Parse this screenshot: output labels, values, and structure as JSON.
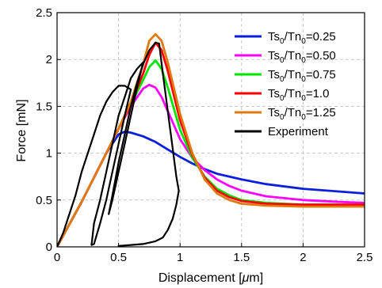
{
  "chart_data": {
    "type": "line",
    "xlabel_prefix": "Displacement [",
    "xlabel_unit": "μ",
    "xlabel_suffix": "m]",
    "ylabel": "Force [mN]",
    "xlim": [
      0,
      2.5
    ],
    "ylim": [
      0,
      2.5
    ],
    "xticks": [
      {
        "value": 0,
        "label": "0"
      },
      {
        "value": 0.5,
        "label": "0.5"
      },
      {
        "value": 1,
        "label": "1"
      },
      {
        "value": 1.5,
        "label": "1.5"
      },
      {
        "value": 2,
        "label": "2"
      },
      {
        "value": 2.5,
        "label": "2.5"
      }
    ],
    "yticks": [
      {
        "value": 0,
        "label": "0"
      },
      {
        "value": 0.5,
        "label": "0.5"
      },
      {
        "value": 1,
        "label": "1"
      },
      {
        "value": 1.5,
        "label": "1.5"
      },
      {
        "value": 2,
        "label": "2"
      },
      {
        "value": 2.5,
        "label": "2.5"
      }
    ],
    "grid": true,
    "legend_position": "top-right",
    "series": [
      {
        "legend": {
          "a": "Ts",
          "a_sub": "0",
          "b": "/Tn",
          "b_sub": "0",
          "c": "=0.25"
        },
        "color": "#0a1edc",
        "x": [
          0,
          0.1,
          0.2,
          0.3,
          0.4,
          0.5,
          0.55,
          0.6,
          0.7,
          0.8,
          0.9,
          1.0,
          1.1,
          1.2,
          1.3,
          1.5,
          1.7,
          2.0,
          2.3,
          2.5
        ],
        "y": [
          0,
          0.24,
          0.48,
          0.74,
          1.0,
          1.2,
          1.23,
          1.22,
          1.18,
          1.12,
          1.04,
          0.96,
          0.89,
          0.83,
          0.78,
          0.72,
          0.67,
          0.62,
          0.59,
          0.57
        ]
      },
      {
        "legend": {
          "a": "Ts",
          "a_sub": "0",
          "b": "/Tn",
          "b_sub": "0",
          "c": "=0.50"
        },
        "color": "#ff00ff",
        "x": [
          0,
          0.1,
          0.2,
          0.3,
          0.4,
          0.5,
          0.6,
          0.7,
          0.75,
          0.8,
          0.85,
          0.9,
          1.0,
          1.1,
          1.2,
          1.3,
          1.4,
          1.5,
          1.7,
          2.0,
          2.3,
          2.5
        ],
        "y": [
          0,
          0.24,
          0.48,
          0.74,
          1.0,
          1.26,
          1.5,
          1.69,
          1.73,
          1.7,
          1.6,
          1.45,
          1.15,
          0.95,
          0.82,
          0.72,
          0.65,
          0.6,
          0.54,
          0.5,
          0.48,
          0.47
        ]
      },
      {
        "legend": {
          "a": "Ts",
          "a_sub": "0",
          "b": "/Tn",
          "b_sub": "0",
          "c": "=0.75"
        },
        "color": "#00e600",
        "x": [
          0,
          0.1,
          0.2,
          0.3,
          0.4,
          0.5,
          0.6,
          0.7,
          0.75,
          0.8,
          0.85,
          0.9,
          1.0,
          1.1,
          1.2,
          1.3,
          1.4,
          1.5,
          1.7,
          2.0,
          2.3,
          2.5
        ],
        "y": [
          0,
          0.24,
          0.48,
          0.74,
          1.0,
          1.26,
          1.52,
          1.78,
          1.92,
          1.99,
          1.9,
          1.7,
          1.25,
          0.95,
          0.75,
          0.62,
          0.55,
          0.5,
          0.47,
          0.45,
          0.45,
          0.45
        ]
      },
      {
        "legend": {
          "a": "Ts",
          "a_sub": "0",
          "b": "/Tn",
          "b_sub": "0",
          "c": "=1.0"
        },
        "color": "#ff0000",
        "x": [
          0,
          0.1,
          0.2,
          0.3,
          0.4,
          0.5,
          0.6,
          0.7,
          0.75,
          0.8,
          0.85,
          0.9,
          1.0,
          1.1,
          1.2,
          1.3,
          1.4,
          1.5,
          1.7,
          2.0,
          2.3,
          2.5
        ],
        "y": [
          0,
          0.24,
          0.48,
          0.74,
          1.0,
          1.26,
          1.52,
          1.85,
          2.05,
          2.18,
          2.1,
          1.88,
          1.35,
          0.98,
          0.74,
          0.6,
          0.53,
          0.49,
          0.46,
          0.45,
          0.45,
          0.45
        ]
      },
      {
        "legend": {
          "a": "Ts",
          "a_sub": "0",
          "b": "/Tn",
          "b_sub": "0",
          "c": "=1.25"
        },
        "color": "#e07a10",
        "x": [
          0,
          0.1,
          0.2,
          0.3,
          0.4,
          0.5,
          0.6,
          0.7,
          0.75,
          0.8,
          0.85,
          0.9,
          1.0,
          1.1,
          1.2,
          1.3,
          1.4,
          1.5,
          1.7,
          2.0,
          2.3,
          2.5
        ],
        "y": [
          0,
          0.24,
          0.48,
          0.74,
          1.0,
          1.26,
          1.55,
          1.95,
          2.2,
          2.27,
          2.2,
          1.97,
          1.42,
          1.0,
          0.72,
          0.57,
          0.5,
          0.46,
          0.44,
          0.43,
          0.43,
          0.43
        ]
      },
      {
        "legend": {
          "a": "Experiment",
          "a_sub": "",
          "b": "",
          "b_sub": "",
          "c": ""
        },
        "color": "#000000",
        "x": [
          0,
          0.05,
          0.1,
          0.15,
          0.2,
          0.25,
          0.3,
          0.35,
          0.4,
          0.45,
          0.5,
          0.55,
          0.6,
          0.55,
          0.5,
          0.45,
          0.4,
          0.35,
          0.3,
          0.28,
          0.3,
          0.35,
          0.4,
          0.45,
          0.5,
          0.55,
          0.6,
          0.65,
          0.7,
          0.65,
          0.6,
          0.55,
          0.5,
          0.45,
          0.42,
          0.45,
          0.5,
          0.55,
          0.6,
          0.65,
          0.7,
          0.75,
          0.8,
          0.83,
          0.86,
          0.9,
          0.94,
          0.97,
          0.99,
          0.97,
          0.94,
          0.9,
          0.86,
          0.8,
          0.7,
          0.6,
          0.5
        ],
        "y": [
          0,
          0.15,
          0.35,
          0.55,
          0.8,
          1.0,
          1.2,
          1.4,
          1.55,
          1.65,
          1.72,
          1.72,
          1.68,
          1.4,
          1.1,
          0.8,
          0.5,
          0.25,
          0.03,
          0.02,
          0.25,
          0.5,
          0.8,
          1.1,
          1.4,
          1.6,
          1.8,
          1.9,
          1.97,
          1.7,
          1.4,
          1.1,
          0.8,
          0.5,
          0.35,
          0.55,
          0.9,
          1.2,
          1.5,
          1.75,
          1.95,
          2.1,
          2.18,
          2.17,
          1.85,
          1.45,
          1.05,
          0.75,
          0.6,
          0.45,
          0.3,
          0.18,
          0.1,
          0.06,
          0.03,
          0.02,
          0.01
        ]
      }
    ]
  }
}
